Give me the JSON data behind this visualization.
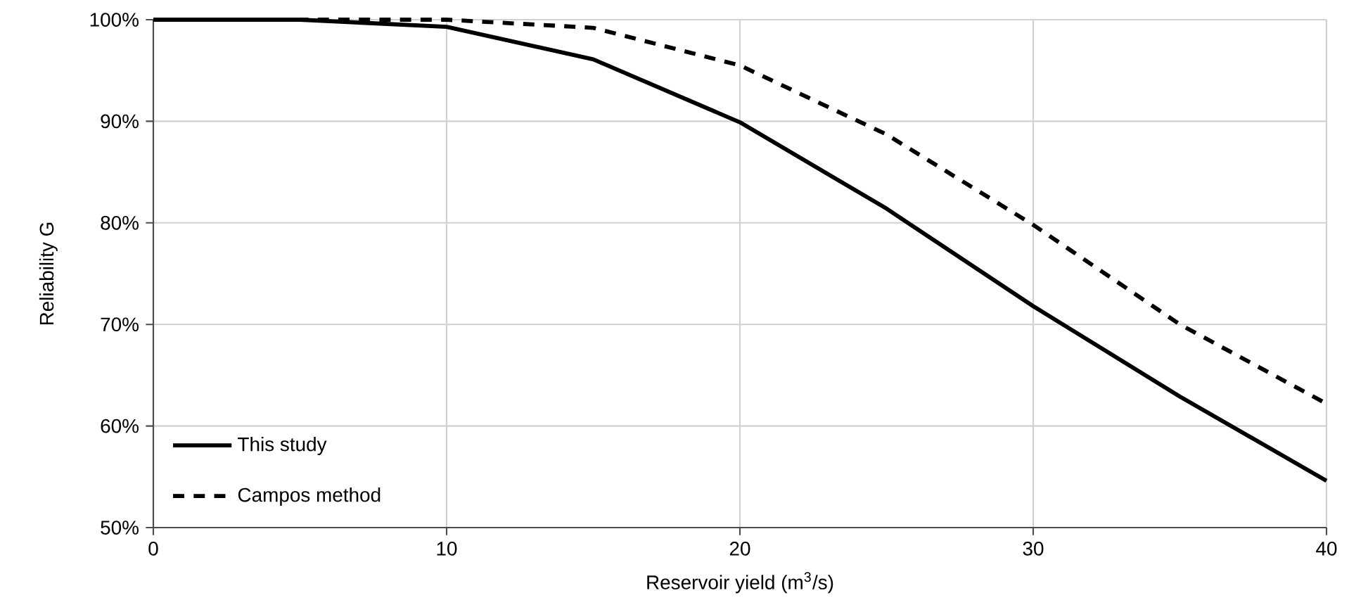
{
  "chart_data": {
    "type": "line",
    "xlabel": "Reservoir yield (m$^{3}$/s)",
    "ylabel": "Reliability G",
    "x": [
      0,
      5,
      10,
      15,
      20,
      25,
      30,
      35,
      40
    ],
    "series": [
      {
        "name": "This study",
        "color": "#000000",
        "line_style": "solid",
        "values": [
          100,
          100,
          99.3,
          96.1,
          89.9,
          81.4,
          71.8,
          62.9,
          54.6
        ]
      },
      {
        "name": "Campos method",
        "color": "#000000",
        "line_style": "dashed",
        "values": [
          100,
          100,
          100,
          99.2,
          95.5,
          88.7,
          79.8,
          70,
          62.2
        ]
      }
    ],
    "xlim": [
      0,
      40
    ],
    "xticks": [
      0,
      10,
      20,
      30,
      40
    ],
    "ylim": [
      50,
      100
    ],
    "yticks": [
      {
        "value": 50,
        "label": "50%"
      },
      {
        "value": 60,
        "label": "60%"
      },
      {
        "value": 70,
        "label": "70%"
      },
      {
        "value": 80,
        "label": "80%"
      },
      {
        "value": 90,
        "label": "90%"
      },
      {
        "value": 100,
        "label": "100%"
      }
    ],
    "grid": true,
    "legend": "bottom left",
    "marker": "none"
  }
}
